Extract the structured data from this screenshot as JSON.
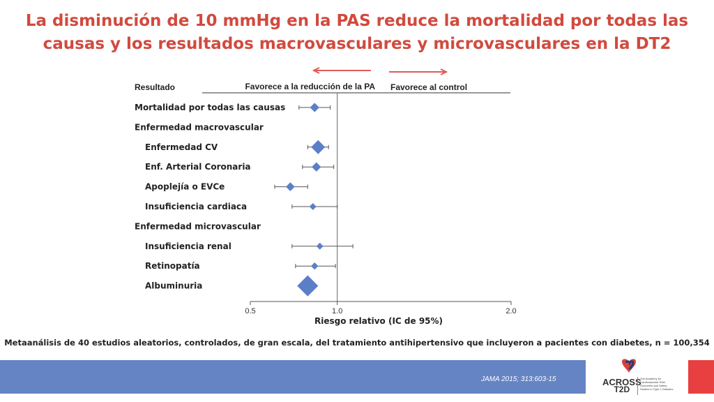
{
  "title_lines": [
    "La disminución de 10 mmHg en la PAS reduce la mortalidad por todas las",
    "causas y los resultados macrovasculares y microvasculares en la DT2"
  ],
  "chart_data": {
    "type": "forest",
    "header_left": "Resultado",
    "header_favors_treatment": "Favorece a la reducción de la PA",
    "header_favors_control": "Favorece al control",
    "xlabel": "Riesgo relativo (IC de 95%)",
    "xlim": [
      0.5,
      2.0
    ],
    "xticks": [
      {
        "value": 0.5,
        "label": "0.5"
      },
      {
        "value": 1.0,
        "label": "1.0"
      },
      {
        "value": 2.0,
        "label": "2.0"
      }
    ],
    "reference_line": 1.0,
    "rows": [
      {
        "label": "Mortalidad por todas las causas",
        "indent": false,
        "rr": 0.87,
        "lo": 0.78,
        "hi": 0.96
      },
      {
        "label": "Enfermedad macrovascular",
        "indent": false
      },
      {
        "label": "Enfermedad CV",
        "indent": true,
        "rr": 0.89,
        "lo": 0.83,
        "hi": 0.95
      },
      {
        "label": "Enf. Arterial Coronaria",
        "indent": true,
        "rr": 0.88,
        "lo": 0.8,
        "hi": 0.98
      },
      {
        "label": "Apoplejía o EVCe",
        "indent": true,
        "rr": 0.73,
        "lo": 0.64,
        "hi": 0.83
      },
      {
        "label": "Insuficiencia cardiaca",
        "indent": true,
        "rr": 0.86,
        "lo": 0.74,
        "hi": 1.0
      },
      {
        "label": "Enfermedad microvascular",
        "indent": false
      },
      {
        "label": "Insuficiencia renal",
        "indent": true,
        "rr": 0.9,
        "lo": 0.74,
        "hi": 1.09
      },
      {
        "label": "Retinopatía",
        "indent": true,
        "rr": 0.87,
        "lo": 0.76,
        "hi": 0.99
      },
      {
        "label": "Albuminuria",
        "indent": true,
        "rr": 0.83,
        "lo": 0.79,
        "hi": 0.87
      }
    ],
    "marker_color": "#5b7fc7"
  },
  "footnote": "Metaanálisis de 40 estudios aleatorios, controlados, de gran escala, del tratamiento antihipertensivo que incluyeron a pacientes con diabetes, n = 100,354",
  "citation": "JAMA 2015; 313:603-15",
  "logo": {
    "line1": "ACROSS",
    "line2": "T2D",
    "tagline": "The Academy for Cardiovascular Risk, Outcomes and Safety Studies in Type 2 Diabetes"
  },
  "colors": {
    "title": "#d14a3e",
    "arrows": "#e05a5a",
    "footer_band": "#6584c4",
    "accent_block": "#e84040"
  }
}
